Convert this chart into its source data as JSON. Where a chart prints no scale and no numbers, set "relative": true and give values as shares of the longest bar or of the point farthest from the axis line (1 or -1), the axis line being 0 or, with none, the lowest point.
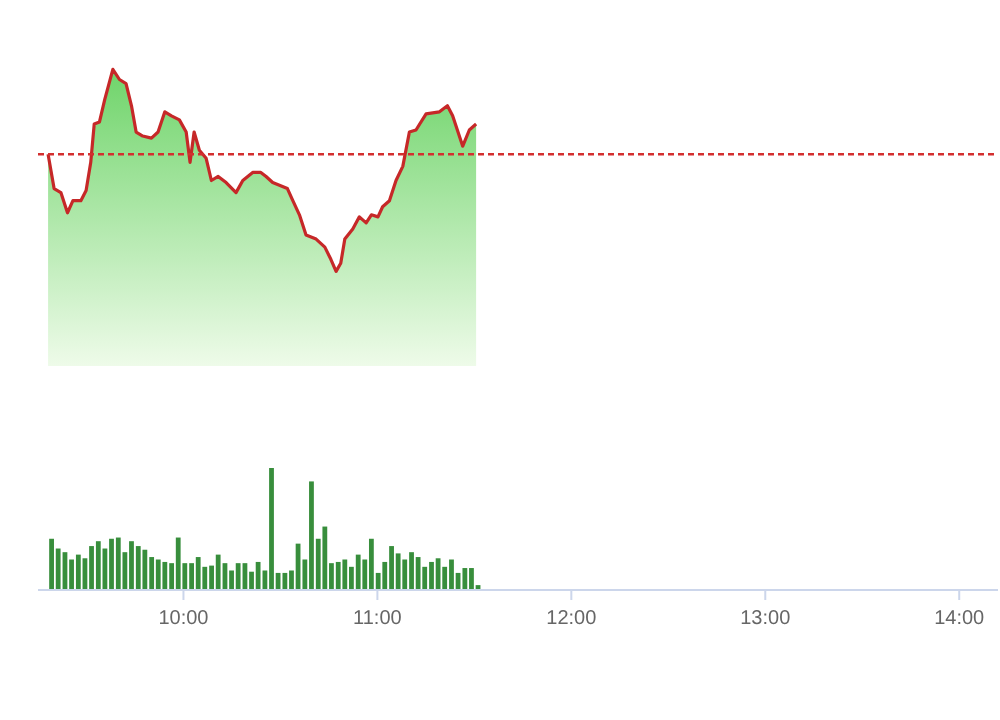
{
  "chart_data": [
    {
      "type": "area",
      "relative": true,
      "xlim": [
        9.25,
        14.2
      ],
      "series": [
        {
          "color": "#c62828",
          "x": [
            9.302,
            9.333,
            9.368,
            9.402,
            9.43,
            9.471,
            9.498,
            9.522,
            9.54,
            9.567,
            9.594,
            9.636,
            9.67,
            9.704,
            9.732,
            9.756,
            9.79,
            9.835,
            9.869,
            9.904,
            9.938,
            9.979,
            10.014,
            10.034,
            10.055,
            10.082,
            10.117,
            10.144,
            10.179,
            10.22,
            10.271,
            10.306,
            10.357,
            10.399,
            10.426,
            10.46,
            10.536,
            10.564,
            10.598,
            10.632,
            10.684,
            10.729,
            10.76,
            10.787,
            10.811,
            10.832,
            10.873,
            10.907,
            10.942,
            10.969,
            11.003,
            11.027,
            11.062,
            11.096,
            11.131,
            11.165,
            11.199,
            11.251,
            11.32,
            11.361,
            11.388,
            11.44,
            11.474,
            11.509
          ],
          "values": [
            0.58,
            0.41,
            0.39,
            0.29,
            0.35,
            0.35,
            0.4,
            0.54,
            0.73,
            0.74,
            0.85,
            1,
            0.95,
            0.93,
            0.82,
            0.69,
            0.67,
            0.66,
            0.69,
            0.79,
            0.77,
            0.75,
            0.69,
            0.54,
            0.69,
            0.6,
            0.56,
            0.45,
            0.47,
            0.44,
            0.39,
            0.45,
            0.49,
            0.49,
            0.47,
            0.44,
            0.41,
            0.35,
            0.28,
            0.18,
            0.16,
            0.12,
            0.06,
            0,
            0.04,
            0.16,
            0.21,
            0.27,
            0.24,
            0.28,
            0.27,
            0.32,
            0.35,
            0.45,
            0.52,
            0.69,
            0.7,
            0.78,
            0.79,
            0.82,
            0.77,
            0.62,
            0.7,
            0.73
          ]
        }
      ],
      "ref_lines": [
        {
          "axis": "y",
          "value": 0.58,
          "color": "#d32f2f",
          "line_style": "dashed"
        }
      ]
    },
    {
      "type": "bar",
      "relative": true,
      "xlim": [
        9.25,
        14.2
      ],
      "xticks": [
        {
          "value": 10,
          "label": "10:00"
        },
        {
          "value": 11,
          "label": "11:00"
        },
        {
          "value": 12,
          "label": "12:00"
        },
        {
          "value": 13,
          "label": "13:00"
        },
        {
          "value": 14,
          "label": "14:00"
        }
      ],
      "series": [
        {
          "color": "#388e3c",
          "x": [
            9.32,
            9.354,
            9.389,
            9.423,
            9.458,
            9.492,
            9.526,
            9.561,
            9.595,
            9.629,
            9.664,
            9.698,
            9.732,
            9.767,
            9.801,
            9.836,
            9.87,
            9.904,
            9.939,
            9.973,
            10.007,
            10.042,
            10.076,
            10.11,
            10.145,
            10.179,
            10.214,
            10.248,
            10.282,
            10.317,
            10.351,
            10.385,
            10.42,
            10.454,
            10.488,
            10.523,
            10.557,
            10.591,
            10.626,
            10.66,
            10.695,
            10.729,
            10.763,
            10.798,
            10.832,
            10.866,
            10.901,
            10.935,
            10.969,
            11.004,
            11.038,
            11.073,
            11.107,
            11.141,
            11.176,
            11.21,
            11.244,
            11.279,
            11.313,
            11.347,
            11.382,
            11.416,
            11.451,
            11.485,
            11.519
          ],
          "values": [
            0.42,
            0.34,
            0.31,
            0.25,
            0.29,
            0.26,
            0.36,
            0.4,
            0.34,
            0.42,
            0.43,
            0.31,
            0.4,
            0.36,
            0.33,
            0.27,
            0.25,
            0.23,
            0.22,
            0.43,
            0.22,
            0.22,
            0.27,
            0.19,
            0.2,
            0.29,
            0.22,
            0.16,
            0.22,
            0.22,
            0.15,
            0.23,
            0.16,
            1,
            0.14,
            0.14,
            0.16,
            0.38,
            0.25,
            0.89,
            0.42,
            0.52,
            0.22,
            0.23,
            0.25,
            0.19,
            0.29,
            0.25,
            0.42,
            0.14,
            0.23,
            0.36,
            0.3,
            0.25,
            0.31,
            0.27,
            0.19,
            0.23,
            0.26,
            0.19,
            0.25,
            0.14,
            0.18,
            0.18,
            0.04
          ]
        }
      ]
    }
  ]
}
